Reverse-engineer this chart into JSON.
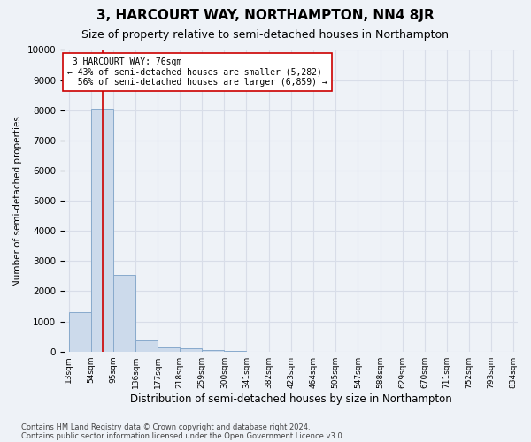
{
  "title": "3, HARCOURT WAY, NORTHAMPTON, NN4 8JR",
  "subtitle": "Size of property relative to semi-detached houses in Northampton",
  "xlabel": "Distribution of semi-detached houses by size in Northampton",
  "ylabel": "Number of semi-detached properties",
  "bins": [
    "13sqm",
    "54sqm",
    "95sqm",
    "136sqm",
    "177sqm",
    "218sqm",
    "259sqm",
    "300sqm",
    "341sqm",
    "382sqm",
    "423sqm",
    "464sqm",
    "505sqm",
    "547sqm",
    "588sqm",
    "629sqm",
    "670sqm",
    "711sqm",
    "752sqm",
    "793sqm",
    "834sqm"
  ],
  "values": [
    1320,
    8050,
    2550,
    380,
    150,
    100,
    50,
    10,
    5,
    2,
    1,
    0,
    0,
    0,
    0,
    0,
    0,
    0,
    0,
    0
  ],
  "bar_color": "#ccdaeb",
  "bar_edgecolor": "#88aacc",
  "property_size": 76,
  "property_label": "3 HARCOURT WAY: 76sqm",
  "pct_smaller": 43,
  "pct_larger": 56,
  "n_smaller": 5282,
  "n_larger": 6859,
  "vline_color": "#cc0000",
  "annotation_box_edgecolor": "#cc0000",
  "annotation_box_facecolor": "#ffffff",
  "ylim": [
    0,
    10000
  ],
  "yticks": [
    0,
    1000,
    2000,
    3000,
    4000,
    5000,
    6000,
    7000,
    8000,
    9000,
    10000
  ],
  "footer_line1": "Contains HM Land Registry data © Crown copyright and database right 2024.",
  "footer_line2": "Contains public sector information licensed under the Open Government Licence v3.0.",
  "background_color": "#eef2f7",
  "grid_color": "#d8dde8",
  "title_fontsize": 11,
  "subtitle_fontsize": 9
}
